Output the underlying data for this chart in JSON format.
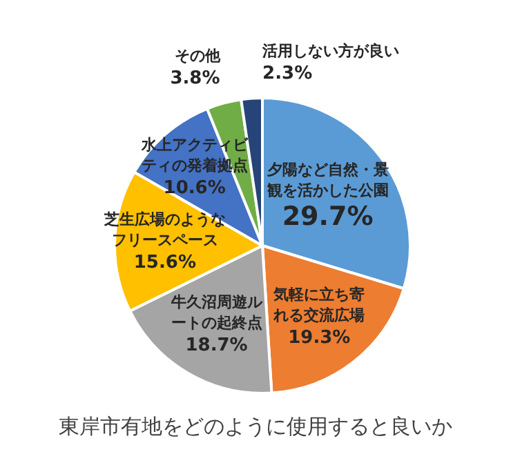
{
  "chart_data": {
    "type": "pie",
    "title": "東岸市有地をどのように使用すると良いか",
    "categories": [
      "夕陽など自然・景観を活かした公園",
      "気軽に立ち寄れる交流広場",
      "牛久沼周遊ルートの起終点",
      "芝生広場のようなフリースペース",
      "水上アクティビティの発着拠点",
      "その他",
      "活用しない方が良い"
    ],
    "values": [
      29.7,
      19.3,
      18.7,
      15.6,
      10.6,
      3.8,
      2.3
    ],
    "colors": [
      "#5b9bd5",
      "#ed7d31",
      "#a5a5a5",
      "#ffc000",
      "#4472c4",
      "#70ad47",
      "#264478"
    ],
    "value_labels": [
      "29.7%",
      "19.3%",
      "18.7%",
      "15.6%",
      "10.6%",
      "3.8%",
      "2.3%"
    ],
    "legend": false
  }
}
